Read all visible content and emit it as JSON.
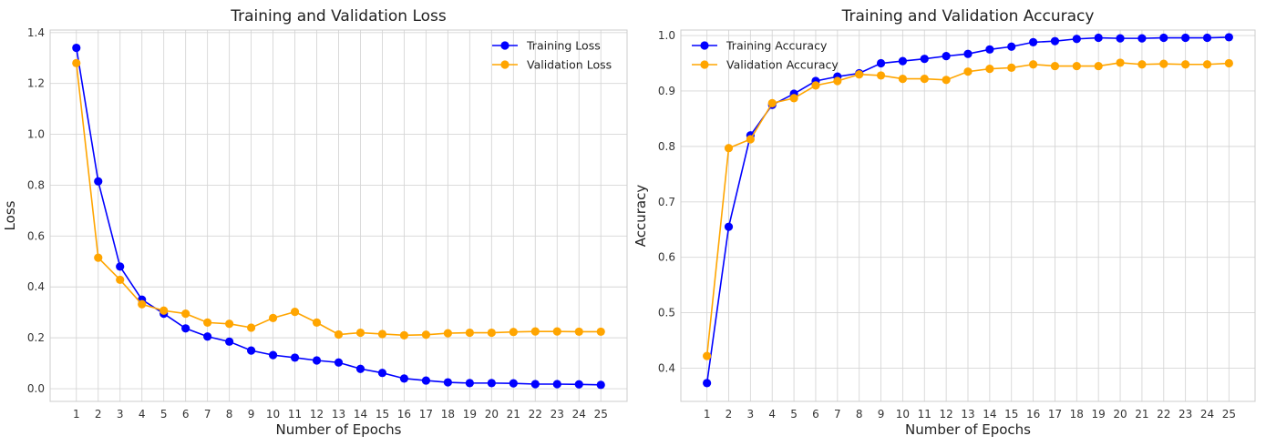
{
  "chart_data": [
    {
      "type": "line",
      "title": "Training and Validation Loss",
      "xlabel": "Number of Epochs",
      "ylabel": "Loss",
      "x": [
        1,
        2,
        3,
        4,
        5,
        6,
        7,
        8,
        9,
        10,
        11,
        12,
        13,
        14,
        15,
        16,
        17,
        18,
        19,
        20,
        21,
        22,
        23,
        24,
        25
      ],
      "xticks": [
        "1",
        "2",
        "3",
        "4",
        "5",
        "6",
        "7",
        "8",
        "9",
        "10",
        "11",
        "12",
        "13",
        "14",
        "15",
        "16",
        "17",
        "18",
        "19",
        "20",
        "21",
        "22",
        "23",
        "24",
        "25"
      ],
      "yticks": [
        "0.0",
        "0.2",
        "0.4",
        "0.6",
        "0.8",
        "1.0",
        "1.2",
        "1.4"
      ],
      "ytick_values": [
        0.0,
        0.2,
        0.4,
        0.6,
        0.8,
        1.0,
        1.2,
        1.4
      ],
      "xlim": [
        -0.2,
        26.2
      ],
      "ylim": [
        -0.05,
        1.41
      ],
      "grid": true,
      "legend_position": "top-right",
      "series": [
        {
          "name": "Training Loss",
          "color": "#0000ff",
          "values": [
            1.34,
            0.815,
            0.48,
            0.35,
            0.295,
            0.237,
            0.205,
            0.185,
            0.15,
            0.132,
            0.122,
            0.111,
            0.103,
            0.078,
            0.062,
            0.04,
            0.032,
            0.025,
            0.022,
            0.022,
            0.021,
            0.018,
            0.018,
            0.017,
            0.015
          ]
        },
        {
          "name": "Validation Loss",
          "color": "#ffa500",
          "values": [
            1.28,
            0.515,
            0.428,
            0.332,
            0.307,
            0.295,
            0.26,
            0.255,
            0.24,
            0.278,
            0.302,
            0.26,
            0.213,
            0.22,
            0.215,
            0.21,
            0.212,
            0.218,
            0.22,
            0.22,
            0.223,
            0.225,
            0.225,
            0.224,
            0.224
          ]
        }
      ]
    },
    {
      "type": "line",
      "title": "Training and Validation Accuracy",
      "xlabel": "Number of Epochs",
      "ylabel": "Accuracy",
      "x": [
        1,
        2,
        3,
        4,
        5,
        6,
        7,
        8,
        9,
        10,
        11,
        12,
        13,
        14,
        15,
        16,
        17,
        18,
        19,
        20,
        21,
        22,
        23,
        24,
        25
      ],
      "xticks": [
        "1",
        "2",
        "3",
        "4",
        "5",
        "6",
        "7",
        "8",
        "9",
        "10",
        "11",
        "12",
        "13",
        "14",
        "15",
        "16",
        "17",
        "18",
        "19",
        "20",
        "21",
        "22",
        "23",
        "24",
        "25"
      ],
      "yticks": [
        "0.4",
        "0.5",
        "0.6",
        "0.7",
        "0.8",
        "0.9",
        "1.0"
      ],
      "ytick_values": [
        0.4,
        0.5,
        0.6,
        0.7,
        0.8,
        0.9,
        1.0
      ],
      "xlim": [
        -0.2,
        26.2
      ],
      "ylim": [
        0.34,
        1.01
      ],
      "grid": true,
      "legend_position": "top-left",
      "series": [
        {
          "name": "Training Accuracy",
          "color": "#0000ff",
          "values": [
            0.373,
            0.655,
            0.82,
            0.875,
            0.895,
            0.918,
            0.926,
            0.932,
            0.95,
            0.954,
            0.958,
            0.963,
            0.967,
            0.975,
            0.98,
            0.988,
            0.99,
            0.994,
            0.996,
            0.995,
            0.995,
            0.996,
            0.996,
            0.996,
            0.997
          ]
        },
        {
          "name": "Validation Accuracy",
          "color": "#ffa500",
          "values": [
            0.422,
            0.797,
            0.813,
            0.878,
            0.887,
            0.91,
            0.918,
            0.93,
            0.928,
            0.922,
            0.922,
            0.92,
            0.935,
            0.94,
            0.942,
            0.948,
            0.945,
            0.945,
            0.945,
            0.951,
            0.948,
            0.949,
            0.948,
            0.948,
            0.95
          ]
        }
      ]
    }
  ]
}
